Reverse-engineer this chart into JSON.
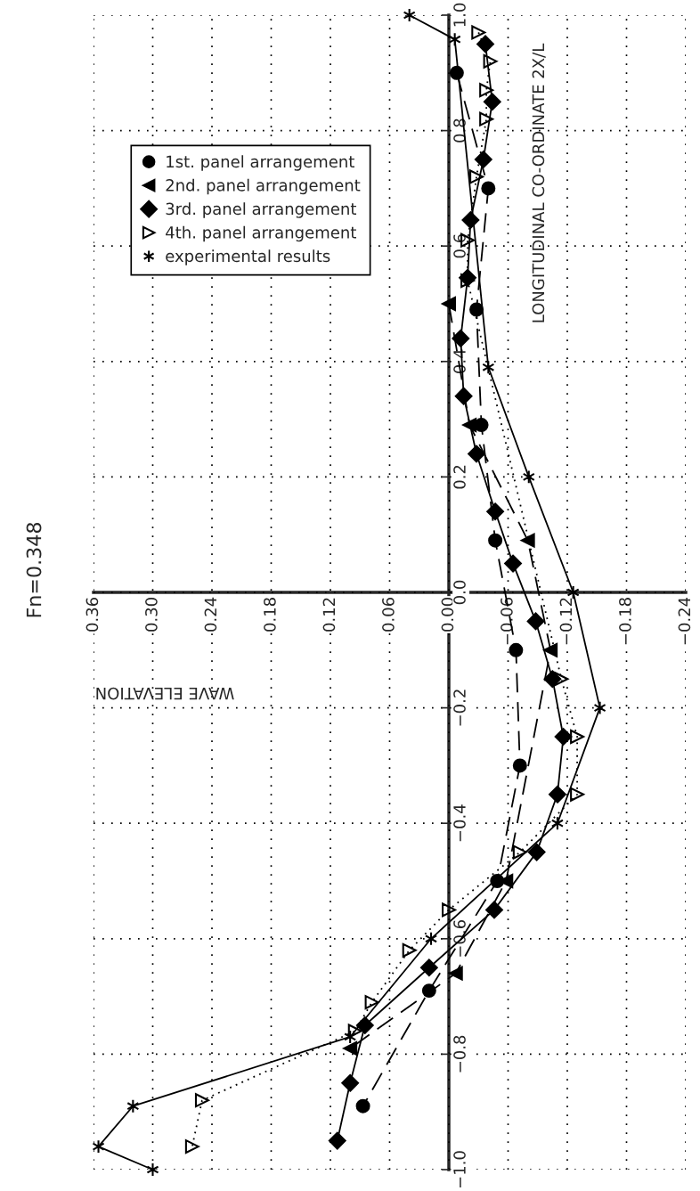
{
  "chart_data": {
    "type": "line",
    "title": "Fn=0.348",
    "xlabel": "WAVE ELEVATION",
    "ylabel": "LONGITUDINAL CO-ORDINATE 2X/L",
    "ylim": [
      -1.0,
      1.0
    ],
    "yticks": [
      {
        "value": -1.0,
        "label": "−1.0"
      },
      {
        "value": -0.8,
        "label": "−0.8"
      },
      {
        "value": -0.6,
        "label": "−0.6"
      },
      {
        "value": -0.4,
        "label": "−0.4"
      },
      {
        "value": -0.2,
        "label": "−0.2"
      },
      {
        "value": 0,
        "label": "0.0"
      },
      0.2,
      0.4,
      0.6,
      0.8,
      {
        "value": 1.0,
        "label": "1.0"
      }
    ],
    "xlim": [
      0.36,
      -0.24
    ],
    "xticks": [
      {
        "value": -0.24,
        "label": "−0.24"
      },
      {
        "value": -0.18,
        "label": "−0.18"
      },
      {
        "value": -0.12,
        "label": "−0.12"
      },
      {
        "value": -0.06,
        "label": "−0.06"
      },
      {
        "value": 0,
        "label": "0.00"
      },
      0.06,
      0.12,
      0.18,
      {
        "value": 0.24,
        "label": "0.24"
      },
      {
        "value": 0.3,
        "label": "0.30"
      },
      0.36
    ],
    "grid": true,
    "legend": "top left",
    "series": [
      {
        "name": "1st. panel arrangement",
        "color": "#000000",
        "marker": "circle",
        "line_style": "dashed",
        "values": [
          0.9,
          0.7,
          0.49,
          0.29,
          0.09,
          -0.1,
          -0.3,
          -0.5,
          -0.69,
          -0.89
        ],
        "x": [
          -0.008,
          -0.04,
          -0.028,
          -0.033,
          -0.047,
          -0.068,
          -0.072,
          -0.049,
          0.02,
          0.087
        ]
      },
      {
        "name": "2nd. panel arrangement",
        "color": "#000000",
        "marker": "triangle",
        "line_style": "dashed",
        "values": [
          0.5,
          0.29,
          0.09,
          -0.1,
          -0.5,
          -0.66,
          -0.79
        ],
        "x": [
          0.0,
          -0.021,
          -0.08,
          -0.103,
          -0.058,
          -0.007,
          0.1
        ]
      },
      {
        "name": "3rd. panel arrangement",
        "color": "#000000",
        "marker": "diamond",
        "line_style": "solid",
        "values": [
          0.95,
          0.85,
          0.75,
          0.645,
          0.545,
          0.44,
          0.34,
          0.24,
          0.14,
          0.05,
          -0.05,
          -0.15,
          -0.25,
          -0.35,
          -0.45,
          -0.55,
          -0.65,
          -0.75,
          -0.85,
          -0.95
        ],
        "x": [
          -0.037,
          -0.044,
          -0.035,
          -0.022,
          -0.019,
          -0.012,
          -0.015,
          -0.028,
          -0.047,
          -0.065,
          -0.088,
          -0.105,
          -0.116,
          -0.11,
          -0.089,
          -0.046,
          0.02,
          0.085,
          0.1,
          0.113
        ]
      },
      {
        "name": "4th. panel arrangement",
        "color": "#000000",
        "marker": "triangle",
        "line_style": "dotted",
        "values": [
          0.97,
          0.92,
          0.87,
          0.82,
          0.72,
          0.61,
          0.54,
          -0.15,
          -0.25,
          -0.35,
          -0.45,
          -0.55,
          -0.62,
          -0.71,
          -0.76,
          -0.88,
          -0.96
        ],
        "x": [
          -0.03,
          -0.042,
          -0.038,
          -0.038,
          -0.028,
          -0.019,
          -0.019,
          -0.114,
          -0.13,
          -0.13,
          -0.072,
          0.0,
          0.04,
          0.078,
          0.095,
          0.25,
          0.26
        ]
      },
      {
        "name": "experimental results",
        "color": "#000000",
        "marker": "cross",
        "line_style": "solid",
        "values": [
          1.0,
          0.958,
          0.39,
          0.2,
          0.0,
          -0.2,
          -0.4,
          -0.6,
          -0.77,
          -0.89,
          -0.96,
          -1.0
        ],
        "x": [
          0.04,
          -0.006,
          -0.04,
          -0.081,
          -0.126,
          -0.153,
          -0.11,
          0.018,
          0.1,
          0.32,
          0.355,
          0.3
        ]
      }
    ]
  }
}
